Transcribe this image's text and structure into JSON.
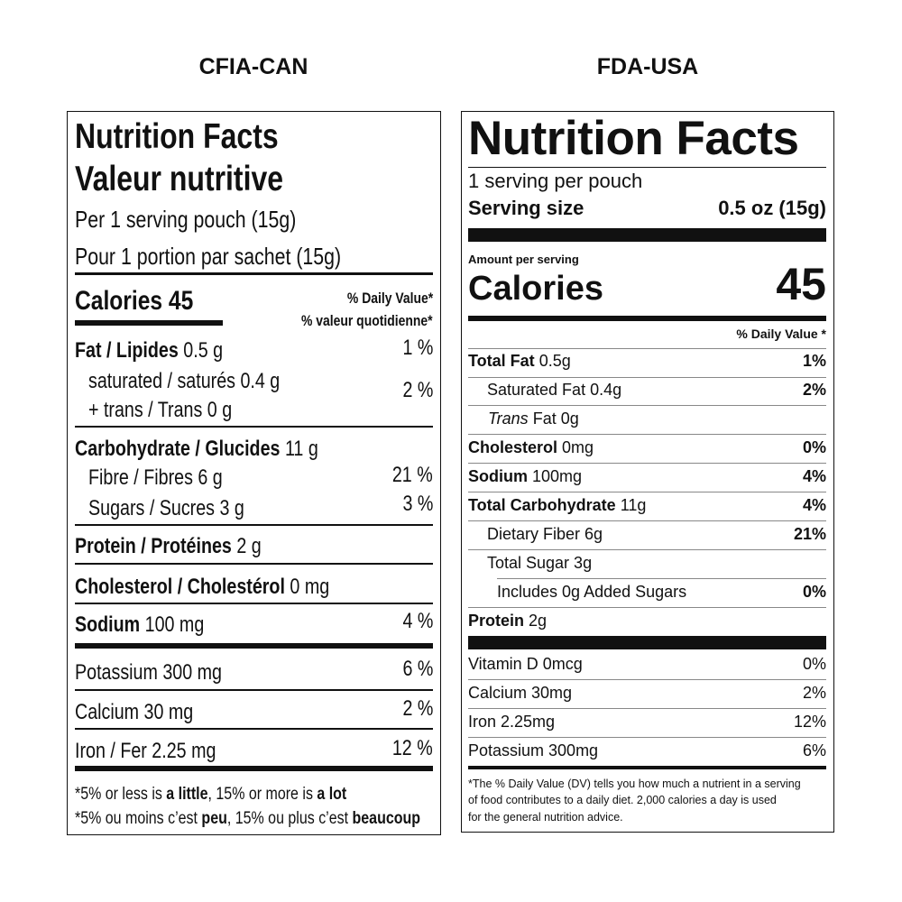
{
  "headers": {
    "can": "CFIA-CAN",
    "usa": "FDA-USA"
  },
  "can": {
    "title_en": "Nutrition Facts",
    "title_fr": "Valeur nutritive",
    "serving_en": "Per 1 serving pouch (15g)",
    "serving_fr": "Pour 1 portion par sachet (15g)",
    "calories": "Calories 45",
    "dv_en": "% Daily Value*",
    "dv_fr": "% valeur quotidienne*",
    "fat": {
      "label": "Fat / Lipides",
      "value": "0.5 g",
      "dv": "1 %"
    },
    "saturated": {
      "label": "saturated / saturés 0.4 g",
      "dv": "2 %"
    },
    "trans": {
      "label": "+ trans / Trans 0 g"
    },
    "carb": {
      "label": "Carbohydrate / Glucides",
      "value": "11 g"
    },
    "fibre": {
      "label": "Fibre / Fibres 6 g",
      "dv": "21 %"
    },
    "sugars": {
      "label": "Sugars / Sucres 3 g",
      "dv": "3 %"
    },
    "protein": {
      "label": "Protein / Protéines",
      "value": "2 g"
    },
    "cholesterol": {
      "label": "Cholesterol / Cholestérol",
      "value": "0 mg"
    },
    "sodium": {
      "label": "Sodium",
      "value": "100 mg",
      "dv": "4 %"
    },
    "potassium": {
      "label": "Potassium 300 mg",
      "dv": "6 %"
    },
    "calcium": {
      "label": "Calcium 30 mg",
      "dv": "2 %"
    },
    "iron": {
      "label": "Iron / Fer 2.25 mg",
      "dv": "12 %"
    },
    "foot_en": {
      "a": "*5% or less is ",
      "b": "a little",
      "c": ", 15% or more is ",
      "d": "a lot"
    },
    "foot_fr": {
      "a": "*5% ou moins c’est ",
      "b": "peu",
      "c": ", 15% ou plus c’est ",
      "d": "beaucoup"
    }
  },
  "usa": {
    "title": "Nutrition Facts",
    "servings": "1 serving per pouch",
    "serving_size_label": "Serving size",
    "serving_size_value": "0.5 oz (15g)",
    "amount_per_serving": "Amount per serving",
    "calories_label": "Calories",
    "calories_value": "45",
    "dv_header": "% Daily Value *",
    "rows": [
      {
        "label": "Total Fat",
        "value": "0.5g",
        "dv": "1%"
      },
      {
        "label": "Saturated Fat 0.4g",
        "dv": "2%"
      },
      {
        "label_italic": "Trans",
        "label": "Fat 0g"
      },
      {
        "label": "Cholesterol",
        "value": "0mg",
        "dv": "0%"
      },
      {
        "label": "Sodium",
        "value": "100mg",
        "dv": "4%"
      },
      {
        "label": "Total Carbohydrate",
        "value": "11g",
        "dv": "4%"
      },
      {
        "label": "Dietary Fiber 6g",
        "dv": "21%"
      },
      {
        "label": "Total Sugar 3g"
      },
      {
        "label": "Includes 0g Added Sugars",
        "dv": "0%"
      },
      {
        "label": "Protein",
        "value": "2g"
      }
    ],
    "minerals": [
      {
        "label": "Vitamin D 0mcg",
        "dv": "0%"
      },
      {
        "label": "Calcium 30mg",
        "dv": "2%"
      },
      {
        "label": "Iron 2.25mg",
        "dv": "12%"
      },
      {
        "label": "Potassium 300mg",
        "dv": "6%"
      }
    ],
    "footnote": [
      "*The % Daily Value (DV) tells you how much a nutrient in a serving",
      "of food contributes to a daily diet. 2,000 calories a day is used",
      "for the general nutrition advice."
    ]
  }
}
